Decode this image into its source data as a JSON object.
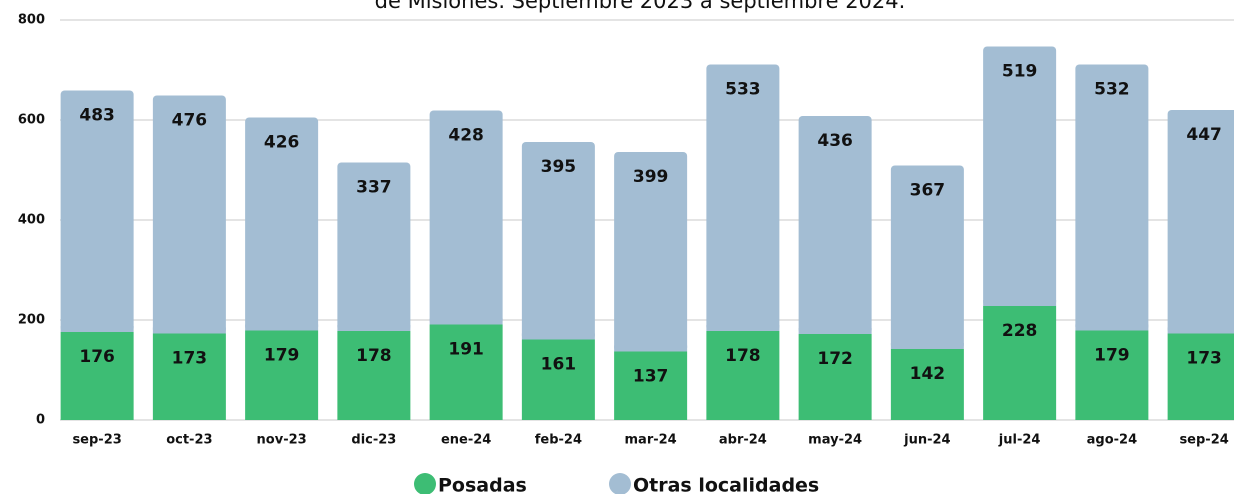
{
  "chart_data": {
    "type": "stacked_bar",
    "title": "de Misiones. Septiembre 2023 a septiembre 2024.",
    "categories": [
      "sep-23",
      "oct-23",
      "nov-23",
      "dic-23",
      "ene-24",
      "feb-24",
      "mar-24",
      "abr-24",
      "may-24",
      "jun-24",
      "jul-24",
      "ago-24",
      "sep-24"
    ],
    "series": [
      {
        "name": "Posadas",
        "color": "#3dbd74",
        "values": [
          176,
          173,
          179,
          178,
          191,
          161,
          137,
          178,
          172,
          142,
          228,
          179,
          173
        ]
      },
      {
        "name": "Otras localidades",
        "color": "#a3bdd3",
        "values": [
          483,
          476,
          426,
          337,
          428,
          395,
          399,
          533,
          436,
          367,
          519,
          532,
          447
        ]
      }
    ],
    "ylim": [
      0,
      800
    ],
    "yticks": [
      0,
      200,
      400,
      600,
      800
    ],
    "grid": true
  }
}
